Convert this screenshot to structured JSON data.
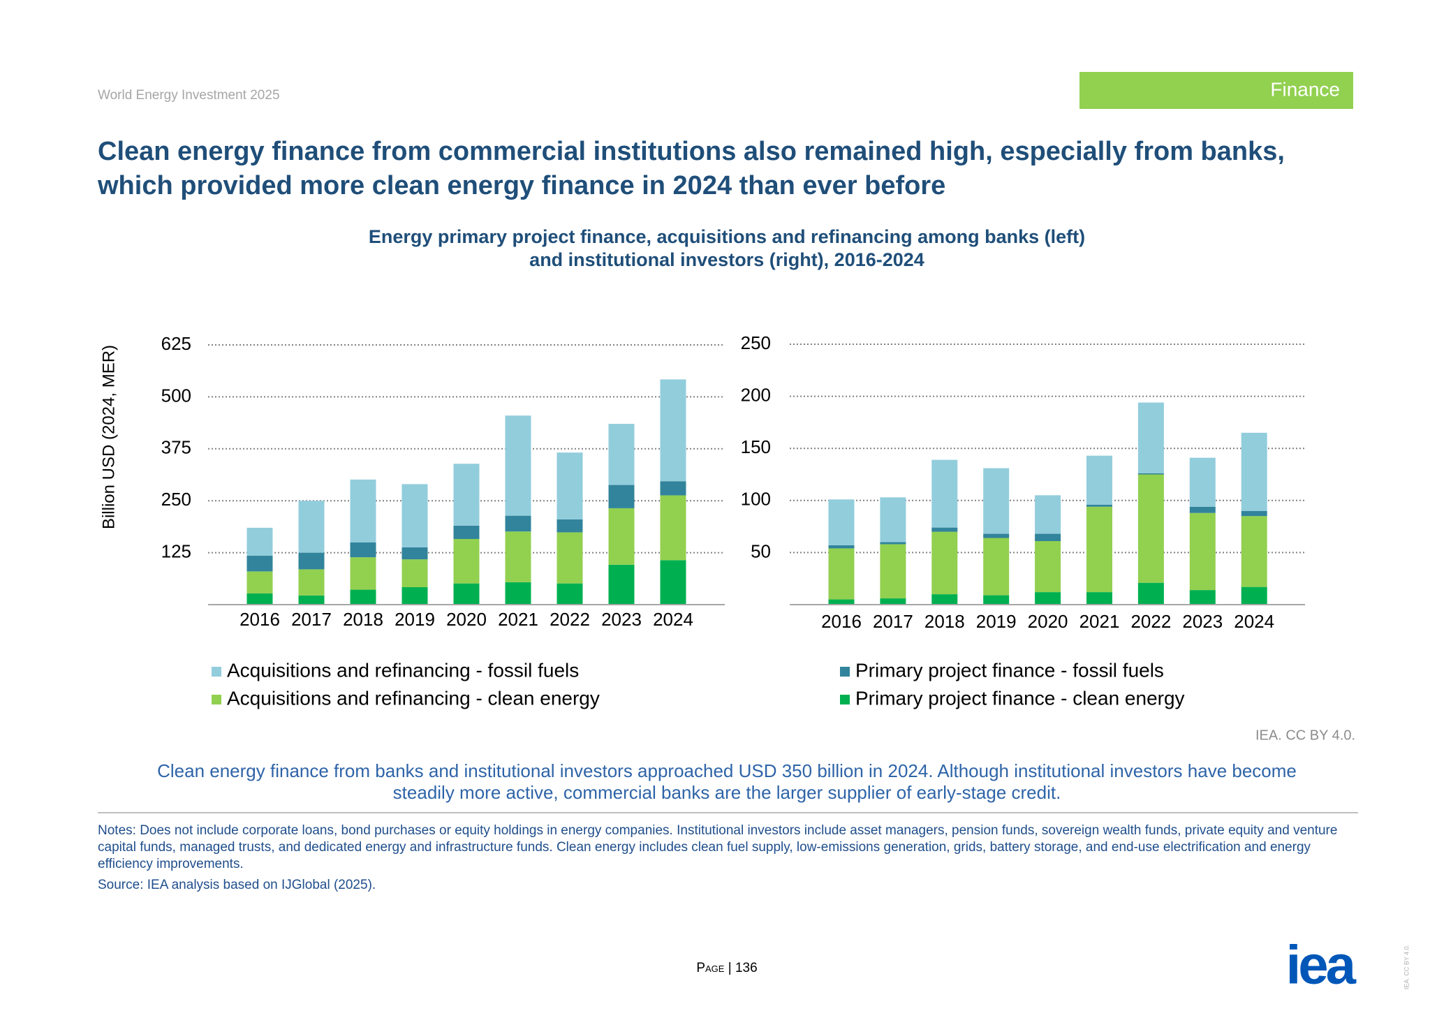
{
  "header": "World Energy Investment 2025",
  "badge": "Finance",
  "headline": [
    "Clean energy finance from commercial institutions also remained high, especially from banks,",
    "which provided more clean energy finance in 2024 than ever before"
  ],
  "figure_title": [
    "Energy primary project finance, acquisitions and refinancing among banks (left)",
    "and institutional investors (right), 2016-2024"
  ],
  "chart_data": [
    {
      "type": "bar",
      "stacked": true,
      "y_label": "Billion USD (2024, MER)",
      "categories": [
        "2016",
        "2017",
        "2018",
        "2019",
        "2020",
        "2021",
        "2022",
        "2023",
        "2024"
      ],
      "ylim": [
        0,
        625
      ],
      "yticks": [
        125,
        250,
        375,
        500,
        625
      ],
      "grid": true,
      "series": [
        {
          "name": "Primary project finance - clean energy",
          "color": "#00b050",
          "values": [
            27,
            22,
            36,
            42,
            51,
            54,
            51,
            96,
            107
          ]
        },
        {
          "name": "Acquisitions and refinancing - clean energy",
          "color": "#92d050",
          "values": [
            53,
            63,
            78,
            67,
            107,
            122,
            123,
            136,
            156
          ]
        },
        {
          "name": "Primary project finance - fossil fuels",
          "color": "#31849b",
          "values": [
            38,
            40,
            36,
            29,
            32,
            38,
            31,
            56,
            34
          ]
        },
        {
          "name": "Acquisitions and refinancing - fossil fuels",
          "color": "#92cddc",
          "values": [
            67,
            125,
            151,
            152,
            149,
            241,
            161,
            147,
            245
          ]
        }
      ]
    },
    {
      "type": "bar",
      "stacked": true,
      "categories": [
        "2016",
        "2017",
        "2018",
        "2019",
        "2020",
        "2021",
        "2022",
        "2023",
        "2024"
      ],
      "ylim": [
        0,
        250
      ],
      "yticks": [
        50,
        100,
        150,
        200,
        250
      ],
      "grid": true,
      "series": [
        {
          "color": "#00b050",
          "values": [
            5,
            6,
            10,
            9,
            12,
            12,
            21,
            14,
            17
          ]
        },
        {
          "color": "#92d050",
          "values": [
            49,
            52,
            60,
            55,
            49,
            82,
            104,
            74,
            68
          ]
        },
        {
          "color": "#31849b",
          "values": [
            3,
            2,
            4,
            4,
            7,
            2,
            1,
            6,
            5
          ]
        },
        {
          "color": "#92cddc",
          "values": [
            44,
            43,
            65,
            63,
            37,
            47,
            68,
            47,
            75
          ]
        }
      ]
    }
  ],
  "credit": "IEA. CC BY 4.0.",
  "caption": [
    "Clean energy finance from banks and institutional investors approached USD 350 billion in 2024. Although institutional investors have become",
    "steadily more active, commercial banks are the larger supplier of early-stage credit."
  ],
  "notes": "Notes: Does not include corporate loans, bond purchases or equity holdings in energy companies. Institutional investors include asset managers, pension funds, sovereign wealth funds, private equity and venture capital funds, managed trusts, and dedicated energy and infrastructure funds. Clean energy includes clean fuel supply, low-emissions generation, grids, battery storage, and end-use electrification and energy efficiency improvements.",
  "source": "Source: IEA analysis based on IJGlobal (2025).",
  "page": "Page | 136",
  "logo": "iea",
  "side_credit": "IEA. CC BY 4.0."
}
